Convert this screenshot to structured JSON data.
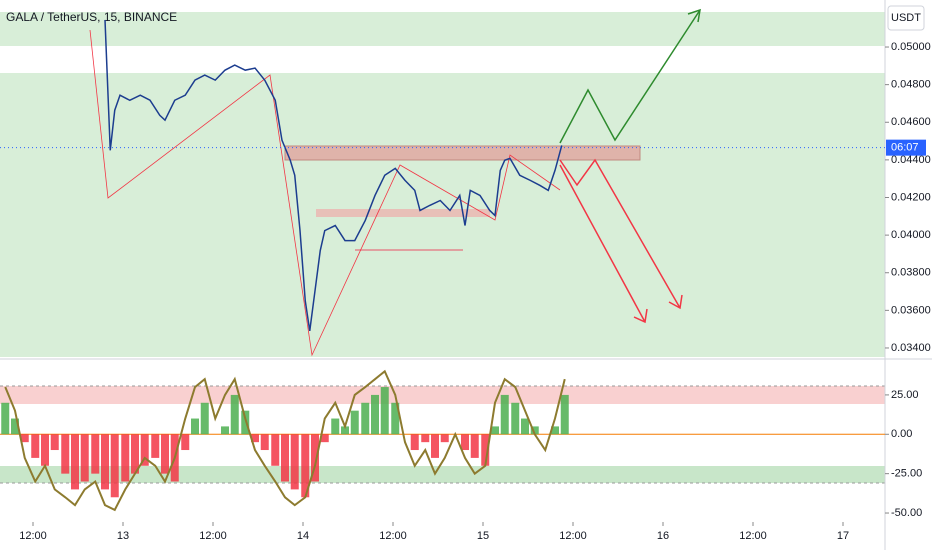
{
  "chart_data": [
    {
      "type": "line",
      "title": "GALA / TetherUS, 15, BINANCE",
      "currency": "USDT",
      "x": [
        9.6,
        10.3,
        10.9,
        11.6,
        12.9,
        14.3,
        15.6,
        16.9,
        17.6,
        18.9,
        20.3,
        21.6,
        22.9,
        24.3,
        25.6,
        26.9,
        28.3,
        29.6,
        30.9,
        32.3,
        33.2,
        34.3,
        34.9,
        35.6,
        36.3,
        36.9,
        37.6,
        38.3,
        38.9,
        40.3,
        41.6,
        42.9,
        44.3,
        45.6,
        46.9,
        48.3,
        49.6,
        50.9,
        51.6,
        52.9,
        54.3,
        55.6,
        56.9,
        57.6,
        58.3,
        59.6,
        60.9,
        61.6,
        62.3,
        62.9,
        63.6,
        64.9,
        66.3,
        67.6,
        68.7,
        69.6,
        70.5
      ],
      "series": [
        {
          "color": "#1c3d8f",
          "values": [
            0.05144,
            0.04451,
            0.04664,
            0.04744,
            0.04717,
            0.04744,
            0.04717,
            0.04637,
            0.04611,
            0.04717,
            0.04744,
            0.04824,
            0.04851,
            0.04824,
            0.04877,
            0.04904,
            0.04877,
            0.04888,
            0.04824,
            0.04717,
            0.04504,
            0.04398,
            0.04318,
            0.04024,
            0.03651,
            0.03491,
            0.03704,
            0.03918,
            0.04024,
            0.04051,
            0.03971,
            0.03971,
            0.04078,
            0.04211,
            0.04318,
            0.04355,
            0.04291,
            0.04238,
            0.04131,
            0.04158,
            0.04184,
            0.04131,
            0.04211,
            0.04051,
            0.04238,
            0.04211,
            0.04131,
            0.04104,
            0.04344,
            0.04398,
            0.04408,
            0.04318,
            0.04291,
            0.04264,
            0.04238,
            0.04344,
            0.04477
          ]
        }
      ],
      "last_price": {
        "value": 0.04465,
        "label": "06:07"
      },
      "xlim": [
        -4.4,
        113.6
      ],
      "ylim": [
        0.03352,
        0.0525
      ],
      "yticks": [
        {
          "value": 0.05,
          "label": "0.05000"
        },
        {
          "value": 0.048,
          "label": "0.04800"
        },
        {
          "value": 0.046,
          "label": "0.04600"
        },
        {
          "value": 0.044,
          "label": "0.04400"
        },
        {
          "value": 0.042,
          "label": "0.04200"
        },
        {
          "value": 0.04,
          "label": "0.04000"
        },
        {
          "value": 0.038,
          "label": "0.03800"
        },
        {
          "value": 0.036,
          "label": "0.03600"
        },
        {
          "value": 0.034,
          "label": "0.03400"
        }
      ],
      "xticks": [
        {
          "value": 0,
          "label": "12:00"
        },
        {
          "value": 12,
          "label": "13"
        },
        {
          "value": 24,
          "label": "12:00"
        },
        {
          "value": 36,
          "label": "14"
        },
        {
          "value": 48,
          "label": "12:00"
        },
        {
          "value": 60,
          "label": "15"
        },
        {
          "value": 72,
          "label": "12:00"
        },
        {
          "value": 84,
          "label": "16"
        },
        {
          "value": 96,
          "label": "12:00"
        },
        {
          "value": 108,
          "label": "17"
        }
      ]
    },
    {
      "type": "histogram-oscillator",
      "x": [
        -3.7,
        -2.4,
        -1.1,
        0.3,
        1.6,
        2.9,
        4.3,
        5.6,
        6.9,
        8.3,
        9.6,
        10.9,
        12.3,
        13.6,
        14.9,
        16.3,
        17.6,
        18.9,
        20.3,
        21.6,
        22.9,
        24.3,
        25.6,
        26.9,
        28.3,
        29.6,
        30.9,
        32.3,
        33.6,
        34.9,
        36.3,
        37.6,
        38.9,
        40.3,
        41.6,
        42.9,
        44.3,
        45.6,
        46.9,
        48.3,
        49.6,
        50.9,
        52.3,
        53.6,
        54.9,
        56.3,
        57.6,
        58.9,
        60.3,
        61.6,
        62.9,
        64.3,
        65.6,
        66.9,
        68.3,
        69.6,
        70.9
      ],
      "values": [
        20,
        10,
        -5,
        -15,
        -20,
        -10,
        -25,
        -35,
        -30,
        -25,
        -35,
        -40,
        -30,
        -25,
        -20,
        -15,
        -25,
        -30,
        -10,
        10,
        20,
        0,
        5,
        25,
        15,
        -5,
        -10,
        -20,
        -30,
        -35,
        -40,
        -30,
        -5,
        10,
        5,
        15,
        20,
        25,
        30,
        20,
        0,
        -10,
        -5,
        -15,
        -5,
        0,
        -10,
        -15,
        -20,
        5,
        25,
        20,
        10,
        5,
        0,
        5,
        25
      ],
      "line": [
        30,
        15,
        -15,
        -30,
        -20,
        -35,
        -40,
        -45,
        -35,
        -30,
        -45,
        -48,
        -35,
        -25,
        -15,
        -20,
        -30,
        -15,
        10,
        30,
        35,
        10,
        25,
        35,
        10,
        -10,
        -20,
        -30,
        -40,
        -45,
        -40,
        -20,
        10,
        20,
        5,
        25,
        30,
        35,
        40,
        25,
        -5,
        -20,
        -10,
        -25,
        -15,
        0,
        -15,
        -25,
        -20,
        20,
        35,
        30,
        15,
        0,
        -10,
        10,
        35
      ],
      "up_color": "#4caf50",
      "down_color": "#f23645",
      "line_color": "#8d7b2f",
      "ylim": [
        -55.7,
        45.9
      ],
      "yticks": [
        {
          "value": 25,
          "label": "25.00"
        },
        {
          "value": 0,
          "label": "0.00"
        },
        {
          "value": -25,
          "label": "-25.00"
        },
        {
          "value": -50,
          "label": "-50.00"
        }
      ]
    }
  ]
}
